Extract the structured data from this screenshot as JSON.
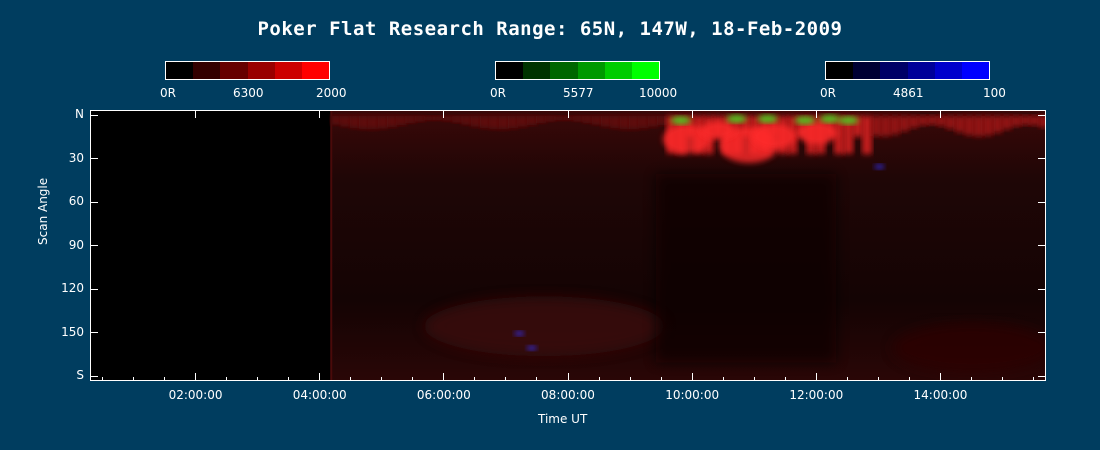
{
  "chart_data": {
    "type": "heatmap",
    "title": "Poker Flat Research Range: 65N, 147W, 18-Feb-2009",
    "xlabel": "Time UT",
    "ylabel": "Scan Angle",
    "xtick_labels": [
      "02:00:00",
      "04:00:00",
      "06:00:00",
      "08:00:00",
      "10:00:00",
      "12:00:00",
      "14:00:00"
    ],
    "xtick_hours": [
      2,
      4,
      6,
      8,
      10,
      12,
      14
    ],
    "xlim_hours": [
      0.3,
      15.7
    ],
    "ytick_labels": [
      "N",
      "30",
      "60",
      "90",
      "120",
      "150",
      "S"
    ],
    "ytick_values": [
      0,
      30,
      60,
      90,
      120,
      150,
      180
    ],
    "ylim": [
      0,
      180
    ],
    "data_start_hour": 4.17,
    "colorbars": [
      {
        "wavelength": "6300",
        "min_label": "0R",
        "max_label": "2000",
        "channel": "red",
        "colors": [
          "#000000",
          "#330000",
          "#660000",
          "#990000",
          "#cc0000",
          "#ff0000"
        ]
      },
      {
        "wavelength": "5577",
        "min_label": "0R",
        "max_label": "10000",
        "channel": "green",
        "colors": [
          "#000000",
          "#003300",
          "#006600",
          "#009900",
          "#00cc00",
          "#00ff00"
        ]
      },
      {
        "wavelength": "4861",
        "min_label": "0R",
        "max_label": "100",
        "channel": "blue",
        "colors": [
          "#000000",
          "#000033",
          "#000066",
          "#000099",
          "#0000cc",
          "#0000ff"
        ]
      }
    ],
    "features": [
      {
        "desc": "intense red emission near north horizon",
        "x_range_hours": [
          9.5,
          15.7
        ],
        "y_range": [
          0,
          30
        ],
        "channel": "red"
      },
      {
        "desc": "green emission bursts",
        "x_range_hours": [
          9.6,
          12.6
        ],
        "y_range": [
          0,
          12
        ],
        "channel": "green"
      },
      {
        "desc": "faint diffuse red",
        "x_range_hours": [
          4.17,
          15.7
        ],
        "y_range": [
          0,
          180
        ],
        "channel": "red"
      }
    ]
  }
}
